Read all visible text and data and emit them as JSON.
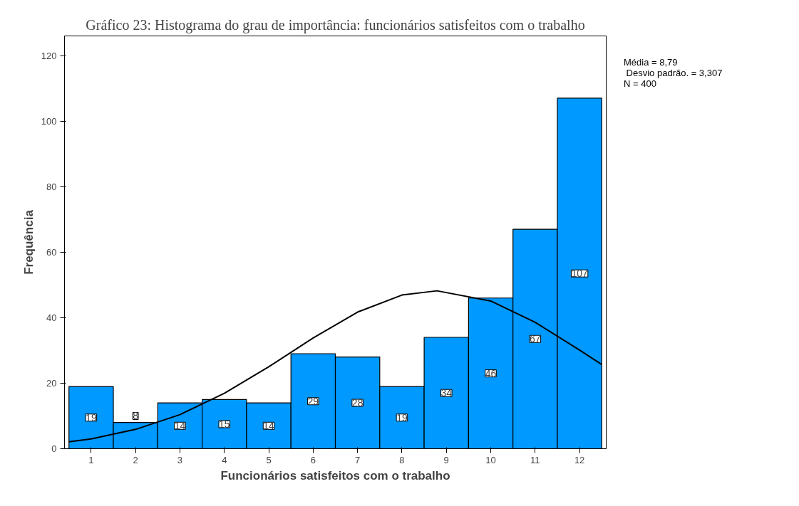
{
  "chart_data": [
    {
      "type": "histogram",
      "title": "Gráfico 23: Histograma do grau de importância: funcionários satisfeitos com o trabalho",
      "xlabel": "Funcionários satisfeitos com o trabalho",
      "ylabel": "Frequência",
      "bins": [
        0.5,
        1.5,
        2.5,
        3.5,
        4.5,
        5.5,
        6.5,
        7.5,
        8.5,
        9.5,
        10.5,
        11.5,
        12.5
      ],
      "values": [
        19,
        8,
        14,
        15,
        14,
        29,
        28,
        19,
        34,
        46,
        67,
        107
      ],
      "color": "#0099ff",
      "value_labels": [
        "19",
        "8",
        "14",
        "15",
        "14",
        "29",
        "28",
        "19",
        "34",
        "46",
        "67",
        "107"
      ],
      "grid": false,
      "xlim": [
        0.4,
        12.6
      ],
      "xticks": [
        1,
        2,
        3,
        4,
        5,
        6,
        7,
        8,
        9,
        10,
        11,
        12
      ],
      "ylim": [
        0,
        126
      ],
      "yticks": [
        0,
        20,
        40,
        60,
        80,
        100,
        120
      ],
      "series": [
        {
          "type": "line",
          "color": "#000000",
          "x": [
            0.5,
            1,
            2,
            3,
            4,
            5,
            6,
            7,
            8,
            8.79,
            10,
            11,
            12,
            12.5
          ],
          "values": [
            2.1,
            3.0,
            5.9,
            10.4,
            16.9,
            25.0,
            33.8,
            41.7,
            46.9,
            48.2,
            45.1,
            38.6,
            30.1,
            25.7
          ]
        }
      ],
      "annotations": [
        "Média = 8,79",
        " Desvio padrão. = 3,307",
        "N = 400"
      ]
    }
  ]
}
